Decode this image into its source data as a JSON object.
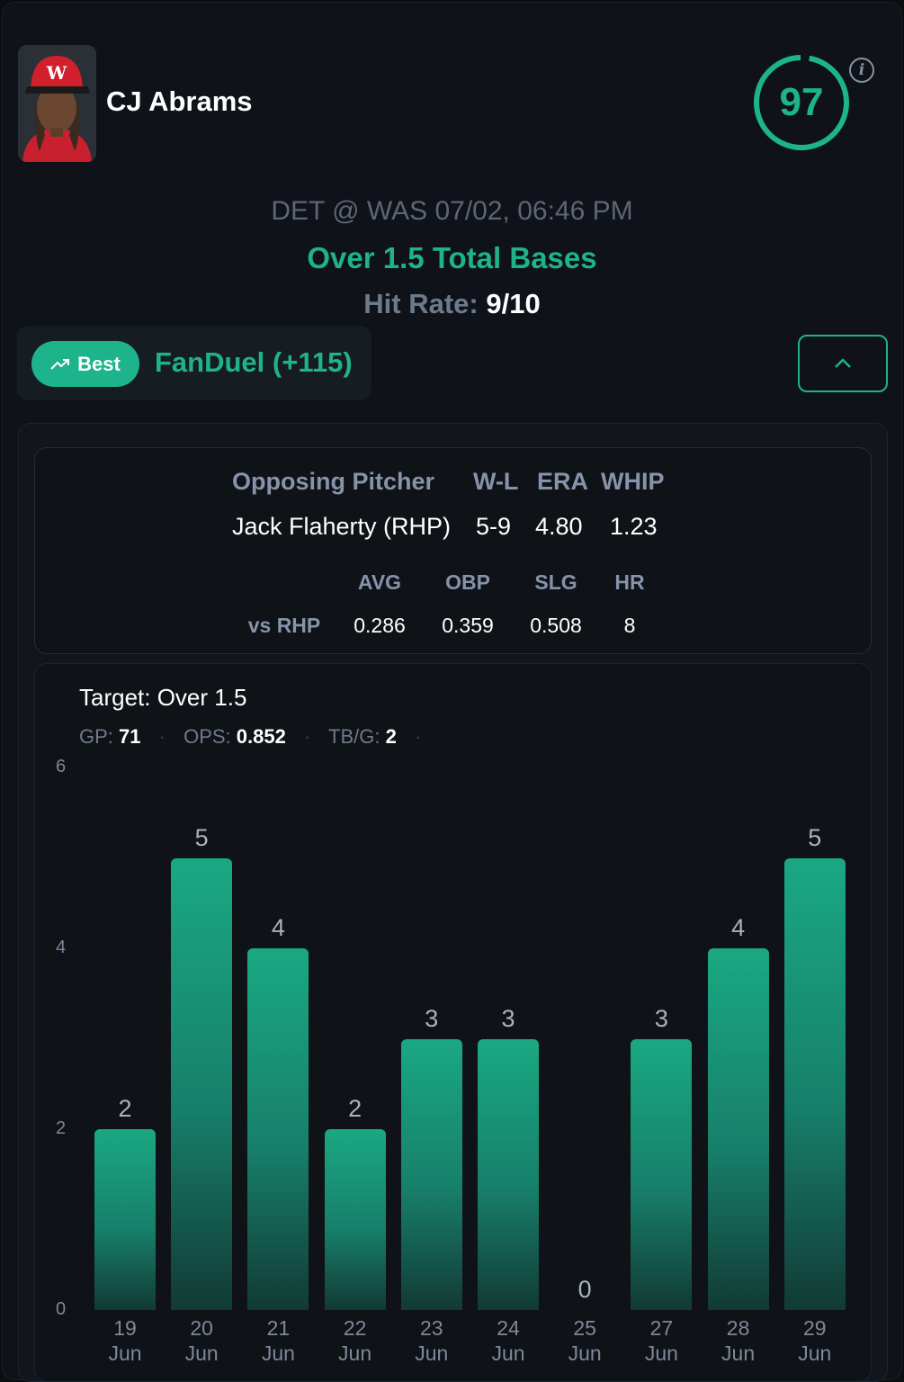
{
  "player": {
    "name": "CJ Abrams",
    "score": "97"
  },
  "game": {
    "matchup": "DET @ WAS 07/02, 06:46 PM",
    "prop": "Over 1.5 Total Bases",
    "hit_rate_label": "Hit Rate:",
    "hit_rate_value": "9/10"
  },
  "book": {
    "badge": "Best",
    "name": "FanDuel (+115)"
  },
  "pitcher": {
    "headers": [
      "Opposing Pitcher",
      "W-L",
      "ERA",
      "WHIP"
    ],
    "values": [
      "Jack Flaherty (RHP)",
      "5-9",
      "4.80",
      "1.23"
    ],
    "split_headers": [
      "AVG",
      "OBP",
      "SLG",
      "HR"
    ],
    "split_label": "vs RHP",
    "split_values": [
      "0.286",
      "0.359",
      "0.508",
      "8"
    ]
  },
  "summary": {
    "target": "Target: Over 1.5",
    "gp_label": "GP:",
    "gp": "71",
    "ops_label": "OPS:",
    "ops": "0.852",
    "tbg_label": "TB/G:",
    "tbg": "2"
  },
  "colors": {
    "accent": "#1db48b",
    "background": "#0f1218"
  },
  "chart_data": {
    "type": "bar",
    "categories": [
      [
        "19",
        "Jun"
      ],
      [
        "20",
        "Jun"
      ],
      [
        "21",
        "Jun"
      ],
      [
        "22",
        "Jun"
      ],
      [
        "23",
        "Jun"
      ],
      [
        "24",
        "Jun"
      ],
      [
        "25",
        "Jun"
      ],
      [
        "27",
        "Jun"
      ],
      [
        "28",
        "Jun"
      ],
      [
        "29",
        "Jun"
      ]
    ],
    "values": [
      2,
      5,
      4,
      2,
      3,
      3,
      0,
      3,
      4,
      5
    ],
    "yticks": [
      0,
      2,
      4,
      6
    ],
    "ylim": [
      0,
      6
    ]
  }
}
